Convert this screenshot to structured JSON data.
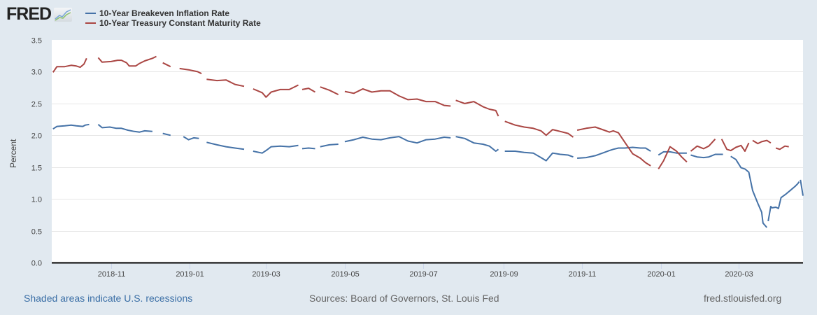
{
  "header": {
    "logo_text": "FRED",
    "logo_icon": "chart-line-icon"
  },
  "legend": [
    {
      "label": "10-Year Breakeven Inflation Rate",
      "color": "#4572a7"
    },
    {
      "label": "10-Year Treasury Constant Maturity Rate",
      "color": "#aa4643"
    }
  ],
  "footer": {
    "recession_note": "Shaded areas indicate U.S. recessions",
    "sources": "Sources: Board of Governors, St. Louis Fed",
    "site": "fred.stlouisfed.org"
  },
  "chart_data": {
    "type": "line",
    "title": "",
    "xlabel": "",
    "ylabel": "Percent",
    "x_range": [
      "2018-09-16",
      "2020-04-20"
    ],
    "ylim": [
      0,
      3.5
    ],
    "yticks": [
      0.0,
      0.5,
      1.0,
      1.5,
      2.0,
      2.5,
      3.0,
      3.5
    ],
    "ytick_labels": [
      "0.0",
      "0.5",
      "1.0",
      "1.5",
      "2.0",
      "2.5",
      "3.0",
      "3.5"
    ],
    "xticks": [
      "2018-11-01",
      "2019-01-01",
      "2019-03-01",
      "2019-05-01",
      "2019-07-01",
      "2019-09-01",
      "2019-11-01",
      "2020-01-01",
      "2020-03-01"
    ],
    "xtick_labels": [
      "2018-11",
      "2019-01",
      "2019-03",
      "2019-05",
      "2019-07",
      "2019-09",
      "2019-11",
      "2020-01",
      "2020-03"
    ],
    "grid": true,
    "legend_position": "top-left",
    "series": [
      {
        "name": "10-Year Breakeven Inflation Rate",
        "color": "#4572a7",
        "points": [
          [
            "2018-09-17",
            2.1
          ],
          [
            "2018-09-20",
            2.14
          ],
          [
            "2018-09-26",
            2.15
          ],
          [
            "2018-10-01",
            2.16
          ],
          [
            "2018-10-05",
            2.15
          ],
          [
            "2018-10-10",
            2.14
          ],
          [
            "2018-10-12",
            2.16
          ],
          [
            "2018-10-15",
            2.17
          ],
          null,
          [
            "2018-10-22",
            2.17
          ],
          [
            "2018-10-25",
            2.12
          ],
          [
            "2018-10-31",
            2.13
          ],
          [
            "2018-11-05",
            2.11
          ],
          [
            "2018-11-09",
            2.11
          ],
          [
            "2018-11-14",
            2.08
          ],
          [
            "2018-11-19",
            2.06
          ],
          [
            "2018-11-23",
            2.05
          ],
          [
            "2018-11-27",
            2.07
          ],
          [
            "2018-12-03",
            2.06
          ],
          null,
          [
            "2018-12-11",
            2.03
          ],
          [
            "2018-12-17",
            2.0
          ],
          null,
          [
            "2018-12-27",
            1.98
          ],
          [
            "2018-12-31",
            1.93
          ],
          [
            "2019-01-04",
            1.96
          ],
          [
            "2019-01-08",
            1.95
          ],
          null,
          [
            "2019-01-14",
            1.89
          ],
          [
            "2019-01-22",
            1.85
          ],
          [
            "2019-01-29",
            1.82
          ],
          [
            "2019-02-05",
            1.8
          ],
          [
            "2019-02-12",
            1.78
          ],
          null,
          [
            "2019-02-19",
            1.75
          ],
          [
            "2019-02-26",
            1.72
          ],
          [
            "2019-03-01",
            1.76
          ],
          [
            "2019-03-05",
            1.82
          ],
          [
            "2019-03-12",
            1.83
          ],
          [
            "2019-03-19",
            1.82
          ],
          [
            "2019-03-26",
            1.84
          ],
          null,
          [
            "2019-03-29",
            1.79
          ],
          [
            "2019-04-03",
            1.8
          ],
          [
            "2019-04-08",
            1.79
          ],
          null,
          [
            "2019-04-12",
            1.82
          ],
          [
            "2019-04-19",
            1.85
          ],
          [
            "2019-04-26",
            1.86
          ],
          null,
          [
            "2019-05-01",
            1.9
          ],
          [
            "2019-05-08",
            1.93
          ],
          [
            "2019-05-15",
            1.97
          ],
          [
            "2019-05-22",
            1.94
          ],
          [
            "2019-05-29",
            1.93
          ],
          [
            "2019-06-05",
            1.96
          ],
          [
            "2019-06-12",
            1.98
          ],
          [
            "2019-06-19",
            1.91
          ],
          [
            "2019-06-26",
            1.88
          ],
          [
            "2019-07-03",
            1.93
          ],
          [
            "2019-07-10",
            1.94
          ],
          [
            "2019-07-17",
            1.97
          ],
          [
            "2019-07-22",
            1.96
          ],
          null,
          [
            "2019-07-26",
            1.98
          ],
          [
            "2019-08-02",
            1.95
          ],
          [
            "2019-08-09",
            1.88
          ],
          [
            "2019-08-16",
            1.86
          ],
          [
            "2019-08-21",
            1.83
          ],
          [
            "2019-08-26",
            1.75
          ],
          [
            "2019-08-28",
            1.78
          ],
          null,
          [
            "2019-09-02",
            1.75
          ],
          [
            "2019-09-10",
            1.75
          ],
          [
            "2019-09-17",
            1.73
          ],
          [
            "2019-09-24",
            1.72
          ],
          [
            "2019-09-30",
            1.65
          ],
          [
            "2019-10-04",
            1.6
          ],
          [
            "2019-10-09",
            1.72
          ],
          [
            "2019-10-15",
            1.7
          ],
          [
            "2019-10-21",
            1.69
          ],
          [
            "2019-10-25",
            1.66
          ],
          null,
          [
            "2019-10-28",
            1.64
          ],
          [
            "2019-11-04",
            1.65
          ],
          [
            "2019-11-11",
            1.68
          ],
          [
            "2019-11-18",
            1.73
          ],
          [
            "2019-11-22",
            1.76
          ],
          [
            "2019-11-25",
            1.78
          ],
          [
            "2019-11-29",
            1.8
          ],
          [
            "2019-12-04",
            1.8
          ],
          [
            "2019-12-10",
            1.81
          ],
          [
            "2019-12-16",
            1.8
          ],
          [
            "2019-12-20",
            1.8
          ],
          [
            "2019-12-24",
            1.75
          ],
          null,
          [
            "2019-12-30",
            1.69
          ],
          [
            "2020-01-03",
            1.74
          ],
          [
            "2020-01-08",
            1.74
          ],
          [
            "2020-01-13",
            1.72
          ],
          [
            "2020-01-17",
            1.72
          ],
          [
            "2020-01-21",
            1.72
          ],
          null,
          [
            "2020-01-24",
            1.69
          ],
          [
            "2020-01-29",
            1.66
          ],
          [
            "2020-02-03",
            1.65
          ],
          [
            "2020-02-07",
            1.66
          ],
          [
            "2020-02-12",
            1.7
          ],
          [
            "2020-02-18",
            1.7
          ],
          null,
          [
            "2020-02-24",
            1.67
          ],
          [
            "2020-02-28",
            1.62
          ],
          [
            "2020-03-03",
            1.49
          ],
          [
            "2020-03-06",
            1.47
          ],
          [
            "2020-03-09",
            1.42
          ],
          [
            "2020-03-12",
            1.13
          ],
          [
            "2020-03-16",
            0.93
          ],
          [
            "2020-03-19",
            0.79
          ],
          [
            "2020-03-20",
            0.62
          ],
          [
            "2020-03-23",
            0.55
          ],
          null,
          [
            "2020-03-24",
            0.65
          ],
          [
            "2020-03-26",
            0.88
          ],
          [
            "2020-03-27",
            0.86
          ],
          [
            "2020-03-30",
            0.87
          ],
          [
            "2020-04-01",
            0.85
          ],
          [
            "2020-04-03",
            1.02
          ],
          [
            "2020-04-07",
            1.08
          ],
          [
            "2020-04-10",
            1.13
          ],
          [
            "2020-04-14",
            1.2
          ],
          [
            "2020-04-16",
            1.24
          ],
          [
            "2020-04-17",
            1.27
          ],
          null,
          [
            "2020-04-18",
            1.3
          ],
          [
            "2020-04-20",
            1.05
          ]
        ]
      },
      {
        "name": "10-Year Treasury Constant Maturity Rate",
        "color": "#aa4643",
        "points": [
          [
            "2018-09-17",
            2.99
          ],
          [
            "2018-09-20",
            3.08
          ],
          [
            "2018-09-26",
            3.08
          ],
          [
            "2018-10-01",
            3.1
          ],
          [
            "2018-10-05",
            3.09
          ],
          [
            "2018-10-08",
            3.07
          ],
          [
            "2018-10-11",
            3.12
          ],
          [
            "2018-10-13",
            3.21
          ],
          null,
          [
            "2018-10-22",
            3.22
          ],
          [
            "2018-10-25",
            3.15
          ],
          [
            "2018-11-01",
            3.16
          ],
          [
            "2018-11-06",
            3.18
          ],
          [
            "2018-11-09",
            3.18
          ],
          [
            "2018-11-13",
            3.14
          ],
          [
            "2018-11-15",
            3.09
          ],
          [
            "2018-11-20",
            3.09
          ],
          [
            "2018-11-23",
            3.13
          ],
          [
            "2018-11-27",
            3.17
          ],
          [
            "2018-12-03",
            3.21
          ],
          [
            "2018-12-06",
            3.24
          ],
          null,
          [
            "2018-12-11",
            3.14
          ],
          [
            "2018-12-17",
            3.08
          ],
          null,
          [
            "2018-12-24",
            3.05
          ],
          [
            "2018-12-31",
            3.03
          ],
          [
            "2019-01-07",
            3.0
          ],
          [
            "2019-01-10",
            2.97
          ],
          null,
          [
            "2019-01-14",
            2.88
          ],
          [
            "2019-01-22",
            2.86
          ],
          [
            "2019-01-29",
            2.87
          ],
          [
            "2019-02-05",
            2.8
          ],
          [
            "2019-02-12",
            2.77
          ],
          null,
          [
            "2019-02-19",
            2.73
          ],
          [
            "2019-02-26",
            2.67
          ],
          [
            "2019-03-01",
            2.6
          ],
          [
            "2019-03-05",
            2.68
          ],
          [
            "2019-03-12",
            2.72
          ],
          [
            "2019-03-19",
            2.72
          ],
          [
            "2019-03-26",
            2.79
          ],
          null,
          [
            "2019-03-29",
            2.72
          ],
          [
            "2019-04-03",
            2.74
          ],
          [
            "2019-04-08",
            2.68
          ],
          null,
          [
            "2019-04-12",
            2.76
          ],
          [
            "2019-04-19",
            2.71
          ],
          [
            "2019-04-26",
            2.64
          ],
          null,
          [
            "2019-05-01",
            2.69
          ],
          [
            "2019-05-08",
            2.66
          ],
          [
            "2019-05-15",
            2.73
          ],
          [
            "2019-05-22",
            2.68
          ],
          [
            "2019-05-29",
            2.7
          ],
          [
            "2019-06-05",
            2.7
          ],
          [
            "2019-06-12",
            2.62
          ],
          [
            "2019-06-19",
            2.56
          ],
          [
            "2019-06-26",
            2.57
          ],
          [
            "2019-07-03",
            2.53
          ],
          [
            "2019-07-10",
            2.53
          ],
          [
            "2019-07-17",
            2.47
          ],
          [
            "2019-07-22",
            2.46
          ],
          null,
          [
            "2019-07-26",
            2.55
          ],
          [
            "2019-08-02",
            2.5
          ],
          [
            "2019-08-09",
            2.53
          ],
          [
            "2019-08-16",
            2.45
          ],
          [
            "2019-08-21",
            2.41
          ],
          [
            "2019-08-26",
            2.39
          ],
          [
            "2019-08-28",
            2.3
          ],
          null,
          [
            "2019-09-02",
            2.22
          ],
          [
            "2019-09-10",
            2.16
          ],
          [
            "2019-09-17",
            2.13
          ],
          [
            "2019-09-24",
            2.11
          ],
          [
            "2019-09-30",
            2.07
          ],
          [
            "2019-10-04",
            2.0
          ],
          [
            "2019-10-09",
            2.09
          ],
          [
            "2019-10-15",
            2.06
          ],
          [
            "2019-10-21",
            2.03
          ],
          [
            "2019-10-25",
            1.97
          ],
          null,
          [
            "2019-10-28",
            2.08
          ],
          [
            "2019-11-04",
            2.11
          ],
          [
            "2019-11-11",
            2.13
          ],
          [
            "2019-11-18",
            2.08
          ],
          [
            "2019-11-22",
            2.05
          ],
          [
            "2019-11-25",
            2.07
          ],
          [
            "2019-11-29",
            2.04
          ],
          [
            "2019-12-04",
            1.89
          ],
          [
            "2019-12-10",
            1.71
          ],
          [
            "2019-12-16",
            1.64
          ],
          [
            "2019-12-20",
            1.57
          ],
          [
            "2019-12-24",
            1.52
          ],
          null,
          [
            "2019-12-30",
            1.47
          ],
          [
            "2020-01-03",
            1.6
          ],
          [
            "2020-01-08",
            1.82
          ],
          [
            "2020-01-13",
            1.75
          ],
          [
            "2020-01-17",
            1.66
          ],
          [
            "2020-01-21",
            1.58
          ],
          null,
          [
            "2020-01-24",
            1.75
          ],
          [
            "2020-01-29",
            1.83
          ],
          [
            "2020-02-03",
            1.79
          ],
          [
            "2020-02-07",
            1.83
          ],
          [
            "2020-02-12",
            1.94
          ],
          null,
          [
            "2020-02-17",
            1.94
          ],
          [
            "2020-02-21",
            1.78
          ],
          [
            "2020-02-24",
            1.76
          ],
          [
            "2020-02-28",
            1.81
          ],
          [
            "2020-03-03",
            1.84
          ],
          [
            "2020-03-06",
            1.75
          ],
          [
            "2020-03-09",
            1.88
          ],
          null,
          [
            "2020-03-12",
            1.92
          ],
          [
            "2020-03-16",
            1.87
          ],
          [
            "2020-03-19",
            1.9
          ],
          [
            "2020-03-23",
            1.92
          ],
          [
            "2020-03-26",
            1.88
          ],
          null,
          [
            "2020-03-30",
            1.8
          ],
          [
            "2020-04-02",
            1.78
          ],
          [
            "2020-04-06",
            1.83
          ],
          [
            "2020-04-09",
            1.82
          ]
        ]
      }
    ]
  }
}
